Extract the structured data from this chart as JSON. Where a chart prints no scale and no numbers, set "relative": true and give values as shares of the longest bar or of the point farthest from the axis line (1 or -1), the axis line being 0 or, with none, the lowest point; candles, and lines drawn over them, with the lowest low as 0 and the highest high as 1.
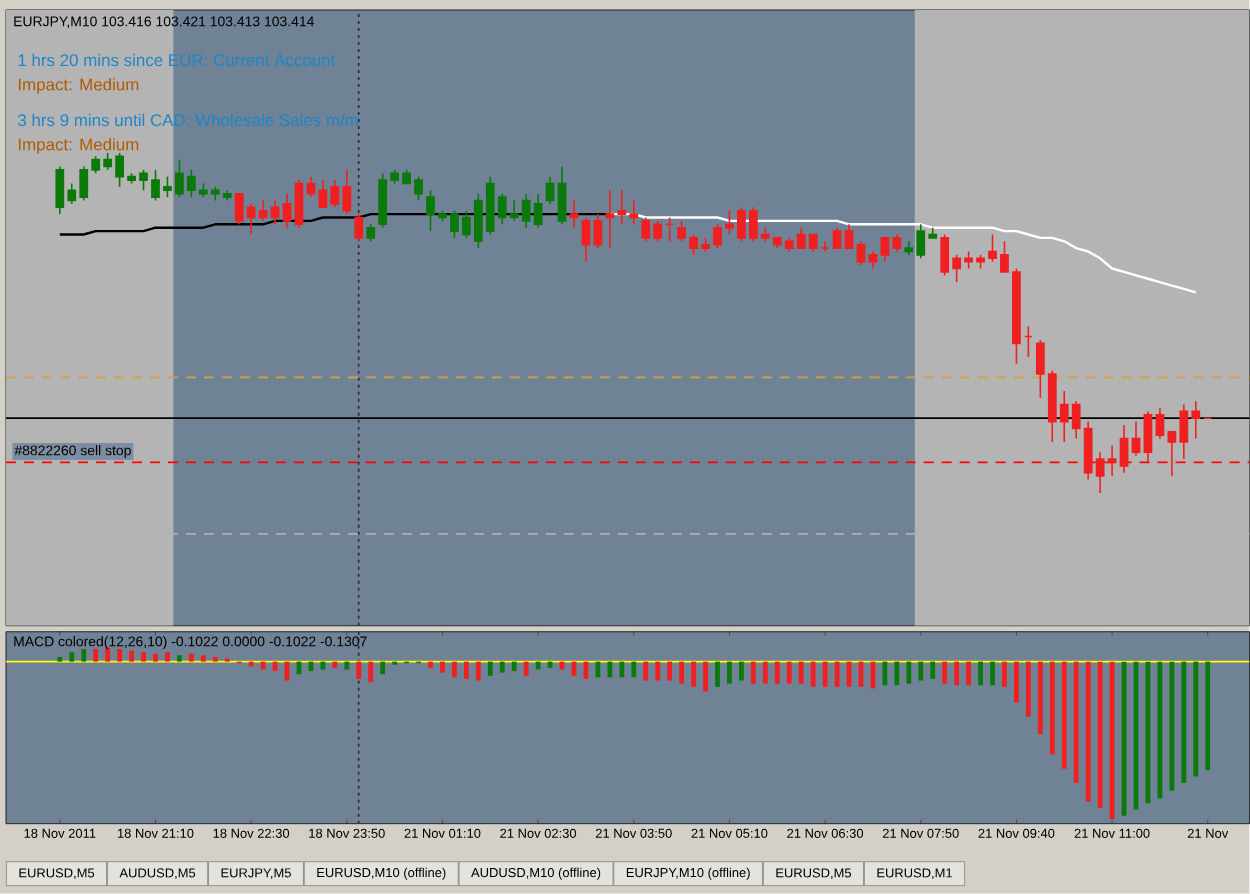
{
  "chart_data": [
    {
      "type": "candlestick",
      "title": "EURJPY,M10 103.416 103.421 103.413 103.414",
      "relative": true,
      "tick_labels": false,
      "ohlc": [
        [
          0.84,
          0.96,
          0.82,
          0.95
        ],
        [
          0.86,
          0.91,
          0.85,
          0.89
        ],
        [
          0.87,
          0.96,
          0.86,
          0.95
        ],
        [
          0.95,
          0.99,
          0.94,
          0.98
        ],
        [
          0.96,
          1.0,
          0.95,
          0.98
        ],
        [
          0.93,
          1.0,
          0.9,
          0.99
        ],
        [
          0.92,
          0.94,
          0.91,
          0.93
        ],
        [
          0.92,
          0.95,
          0.89,
          0.94
        ],
        [
          0.87,
          0.95,
          0.86,
          0.92
        ],
        [
          0.89,
          0.93,
          0.87,
          0.9
        ],
        [
          0.88,
          0.98,
          0.87,
          0.94
        ],
        [
          0.89,
          0.95,
          0.87,
          0.93
        ],
        [
          0.88,
          0.91,
          0.87,
          0.89
        ],
        [
          0.88,
          0.9,
          0.86,
          0.89
        ],
        [
          0.87,
          0.89,
          0.86,
          0.88
        ],
        [
          0.88,
          0.88,
          0.79,
          0.8
        ],
        [
          0.84,
          0.85,
          0.76,
          0.81
        ],
        [
          0.83,
          0.86,
          0.8,
          0.81
        ],
        [
          0.84,
          0.86,
          0.79,
          0.81
        ],
        [
          0.85,
          0.88,
          0.78,
          0.8
        ],
        [
          0.91,
          0.92,
          0.78,
          0.79
        ],
        [
          0.91,
          0.93,
          0.87,
          0.88
        ],
        [
          0.89,
          0.92,
          0.84,
          0.84
        ],
        [
          0.9,
          0.92,
          0.84,
          0.85
        ],
        [
          0.9,
          0.95,
          0.82,
          0.83
        ],
        [
          0.81,
          0.82,
          0.74,
          0.75
        ],
        [
          0.75,
          0.79,
          0.74,
          0.78
        ],
        [
          0.79,
          0.94,
          0.78,
          0.92
        ],
        [
          0.92,
          0.95,
          0.91,
          0.94
        ],
        [
          0.91,
          0.95,
          0.91,
          0.94
        ],
        [
          0.88,
          0.93,
          0.86,
          0.92
        ],
        [
          0.82,
          0.89,
          0.77,
          0.87
        ],
        [
          0.81,
          0.83,
          0.8,
          0.82
        ],
        [
          0.77,
          0.83,
          0.75,
          0.82
        ],
        [
          0.76,
          0.83,
          0.75,
          0.81
        ],
        [
          0.74,
          0.88,
          0.72,
          0.86
        ],
        [
          0.77,
          0.93,
          0.76,
          0.91
        ],
        [
          0.81,
          0.88,
          0.79,
          0.87
        ],
        [
          0.81,
          0.86,
          0.8,
          0.82
        ],
        [
          0.8,
          0.88,
          0.78,
          0.86
        ],
        [
          0.79,
          0.88,
          0.78,
          0.85
        ],
        [
          0.86,
          0.93,
          0.85,
          0.91
        ],
        [
          0.8,
          0.96,
          0.79,
          0.91
        ],
        [
          0.82,
          0.86,
          0.78,
          0.81
        ],
        [
          0.8,
          0.81,
          0.68,
          0.73
        ],
        [
          0.8,
          0.82,
          0.72,
          0.73
        ],
        [
          0.82,
          0.89,
          0.72,
          0.81
        ],
        [
          0.83,
          0.89,
          0.79,
          0.82
        ],
        [
          0.82,
          0.86,
          0.79,
          0.81
        ],
        [
          0.8,
          0.81,
          0.74,
          0.75
        ],
        [
          0.79,
          0.8,
          0.74,
          0.75
        ],
        [
          0.79,
          0.81,
          0.74,
          0.79
        ],
        [
          0.78,
          0.8,
          0.74,
          0.75
        ],
        [
          0.75,
          0.76,
          0.7,
          0.72
        ],
        [
          0.73,
          0.75,
          0.71,
          0.72
        ],
        [
          0.78,
          0.79,
          0.72,
          0.73
        ],
        [
          0.79,
          0.83,
          0.76,
          0.78
        ],
        [
          0.83,
          0.84,
          0.74,
          0.75
        ],
        [
          0.83,
          0.84,
          0.74,
          0.75
        ],
        [
          0.76,
          0.78,
          0.74,
          0.75
        ],
        [
          0.75,
          0.75,
          0.72,
          0.73
        ],
        [
          0.74,
          0.75,
          0.71,
          0.72
        ],
        [
          0.76,
          0.78,
          0.72,
          0.72
        ],
        [
          0.76,
          0.76,
          0.71,
          0.72
        ],
        [
          0.72,
          0.74,
          0.71,
          0.72
        ],
        [
          0.77,
          0.78,
          0.72,
          0.72
        ],
        [
          0.77,
          0.79,
          0.72,
          0.72
        ],
        [
          0.73,
          0.74,
          0.67,
          0.68
        ],
        [
          0.7,
          0.71,
          0.66,
          0.68
        ],
        [
          0.75,
          0.75,
          0.68,
          0.7
        ],
        [
          0.75,
          0.76,
          0.71,
          0.72
        ],
        [
          0.71,
          0.74,
          0.7,
          0.72
        ],
        [
          0.7,
          0.79,
          0.69,
          0.77
        ],
        [
          0.75,
          0.78,
          0.75,
          0.76
        ],
        [
          0.75,
          0.76,
          0.64,
          0.65
        ],
        [
          0.69,
          0.7,
          0.62,
          0.66
        ],
        [
          0.69,
          0.71,
          0.66,
          0.68
        ],
        [
          0.69,
          0.7,
          0.66,
          0.68
        ],
        [
          0.71,
          0.76,
          0.68,
          0.69
        ],
        [
          0.7,
          0.74,
          0.65,
          0.65
        ],
        [
          0.65,
          0.66,
          0.38,
          0.44
        ],
        [
          0.46,
          0.49,
          0.4,
          0.46
        ],
        [
          0.44,
          0.45,
          0.28,
          0.35
        ],
        [
          0.35,
          0.36,
          0.15,
          0.21
        ],
        [
          0.26,
          0.3,
          0.15,
          0.21
        ],
        [
          0.26,
          0.27,
          0.16,
          0.19
        ],
        [
          0.19,
          0.21,
          0.04,
          0.06
        ],
        [
          0.1,
          0.12,
          0.0,
          0.05
        ],
        [
          0.1,
          0.14,
          0.05,
          0.09
        ],
        [
          0.16,
          0.2,
          0.06,
          0.08
        ],
        [
          0.16,
          0.21,
          0.11,
          0.12
        ],
        [
          0.23,
          0.24,
          0.09,
          0.12
        ],
        [
          0.23,
          0.25,
          0.16,
          0.17
        ],
        [
          0.18,
          0.18,
          0.05,
          0.15
        ],
        [
          0.24,
          0.26,
          0.1,
          0.15
        ],
        [
          0.24,
          0.27,
          0.16,
          0.22
        ],
        [
          0.22,
          0.22,
          0.22,
          0.22
        ]
      ],
      "series": [
        {
          "type": "line",
          "color": "#000000",
          "values": [
            0.76,
            0.76,
            0.76,
            0.77,
            0.77,
            0.77,
            0.77,
            0.77,
            0.78,
            0.78,
            0.78,
            0.78,
            0.78,
            0.79,
            0.79,
            0.79,
            0.79,
            0.79,
            0.8,
            0.8,
            0.8,
            0.8,
            0.81,
            0.81,
            0.81,
            0.81,
            0.82,
            0.82,
            0.82,
            0.82,
            0.82,
            0.82,
            0.82,
            0.82,
            0.82,
            0.82,
            0.82,
            0.82,
            0.82,
            0.82,
            0.82,
            0.82,
            0.82,
            0.82,
            0.82,
            0.82,
            0.82,
            null,
            null,
            null,
            null,
            null,
            null,
            null,
            null,
            null,
            null,
            null,
            null,
            null,
            null,
            null,
            null,
            null,
            null,
            null,
            null,
            null,
            null,
            null,
            null,
            null,
            null,
            null,
            null,
            null,
            null,
            null,
            null,
            null,
            null,
            null,
            null,
            null,
            null,
            null,
            null,
            null,
            null,
            null,
            null,
            null,
            null,
            null,
            null,
            null,
            null
          ]
        },
        {
          "type": "line",
          "color": "#ffffff",
          "values": [
            null,
            null,
            null,
            null,
            null,
            null,
            null,
            null,
            null,
            null,
            null,
            null,
            null,
            null,
            null,
            null,
            null,
            null,
            null,
            null,
            null,
            null,
            null,
            null,
            null,
            null,
            null,
            null,
            null,
            null,
            null,
            null,
            null,
            null,
            null,
            null,
            null,
            null,
            null,
            null,
            null,
            null,
            null,
            null,
            null,
            null,
            0.82,
            0.82,
            0.82,
            0.81,
            0.81,
            0.81,
            0.81,
            0.81,
            0.81,
            0.81,
            0.8,
            0.8,
            0.8,
            0.8,
            0.8,
            0.8,
            0.8,
            0.8,
            0.8,
            0.8,
            0.79,
            0.79,
            0.79,
            0.79,
            0.79,
            0.79,
            0.79,
            0.78,
            0.78,
            0.78,
            0.78,
            0.78,
            0.78,
            0.77,
            0.77,
            0.76,
            0.75,
            0.75,
            0.74,
            0.72,
            0.71,
            0.69,
            0.66,
            0.65,
            0.64,
            0.63,
            0.62,
            0.61,
            0.6,
            0.59,
            null
          ]
        }
      ],
      "annotations": [
        "1 hrs 20 mins since EUR: Current Account",
        "Impact: Medium",
        "3 hrs 9 mins until CAD: Wholesale Sales m/m",
        "Impact: Medium"
      ],
      "ref_lines": [
        {
          "axis": "y",
          "value": 0.34,
          "color": "#d8a040",
          "line_style": "dashed"
        },
        {
          "axis": "y",
          "value": 0.22,
          "color": "#000000",
          "line_style": "solid"
        },
        {
          "axis": "y",
          "value": 0.09,
          "color": "#ff0000",
          "line_style": "dashed",
          "label": "#8822260 sell stop"
        },
        {
          "axis": "y",
          "value": -0.12,
          "color": "#b0b0b0",
          "line_style": "dashed"
        }
      ]
    },
    {
      "type": "bar",
      "title": "MACD colored(12,26,10) -0.1022 0.0000 -0.1022 -0.1307",
      "relative": true,
      "tick_labels": "x",
      "categories": [
        "18 Nov 2011",
        null,
        null,
        null,
        null,
        null,
        null,
        null,
        "18 Nov 21:10",
        null,
        null,
        null,
        null,
        null,
        null,
        null,
        "18 Nov 22:30",
        null,
        null,
        null,
        null,
        null,
        null,
        null,
        "18 Nov 23:50",
        null,
        null,
        null,
        null,
        null,
        null,
        null,
        "21 Nov 01:10",
        null,
        null,
        null,
        null,
        null,
        null,
        null,
        "21 Nov 02:30",
        null,
        null,
        null,
        null,
        null,
        null,
        null,
        "21 Nov 03:50",
        null,
        null,
        null,
        null,
        null,
        null,
        null,
        "21 Nov 05:10",
        null,
        null,
        null,
        null,
        null,
        null,
        null,
        "21 Nov 06:30",
        null,
        null,
        null,
        null,
        null,
        null,
        null,
        "21 Nov 07:50",
        null,
        null,
        null,
        null,
        null,
        null,
        null,
        "21 Nov 09:40",
        null,
        null,
        null,
        null,
        null,
        null,
        null,
        "21 Nov 11:00",
        null,
        null,
        null,
        null,
        null,
        null,
        null,
        "21 Nov"
      ],
      "values": [
        0.03,
        0.06,
        0.08,
        0.08,
        0.09,
        0.08,
        0.07,
        0.06,
        0.05,
        0.06,
        0.04,
        0.05,
        0.04,
        0.03,
        0.02,
        -0.01,
        -0.03,
        -0.05,
        -0.06,
        -0.12,
        -0.08,
        -0.06,
        -0.05,
        -0.04,
        -0.05,
        -0.11,
        -0.13,
        -0.08,
        -0.02,
        -0.01,
        -0.01,
        -0.04,
        -0.07,
        -0.1,
        -0.11,
        -0.12,
        -0.09,
        -0.07,
        -0.06,
        -0.09,
        -0.05,
        -0.04,
        -0.05,
        -0.09,
        -0.11,
        -0.1,
        -0.1,
        -0.1,
        -0.1,
        -0.12,
        -0.12,
        -0.12,
        -0.14,
        -0.16,
        -0.19,
        -0.16,
        -0.14,
        -0.12,
        -0.14,
        -0.14,
        -0.14,
        -0.14,
        -0.14,
        -0.16,
        -0.16,
        -0.16,
        -0.16,
        -0.16,
        -0.17,
        -0.15,
        -0.15,
        -0.14,
        -0.12,
        -0.11,
        -0.14,
        -0.15,
        -0.15,
        -0.15,
        -0.15,
        -0.16,
        -0.26,
        -0.35,
        -0.46,
        -0.59,
        -0.68,
        -0.77,
        -0.89,
        -0.93,
        -1,
        -0.98,
        -0.94,
        -0.9,
        -0.87,
        -0.82,
        -0.77,
        -0.73,
        -0.69
      ],
      "colors": [
        "#0b7a0b",
        "#0b7a0b",
        "#0b7a0b",
        "#f02020",
        "#f02020",
        "#f02020",
        "#f02020",
        "#f02020",
        "#f02020",
        "#f02020",
        "#0b7a0b",
        "#f02020",
        "#f02020",
        "#f02020",
        "#f02020",
        "#f02020",
        "#f02020",
        "#f02020",
        "#f02020",
        "#f02020",
        "#0b7a0b",
        "#0b7a0b",
        "#0b7a0b",
        "#f02020",
        "#0b7a0b",
        "#f02020",
        "#f02020",
        "#0b7a0b",
        "#0b7a0b",
        "#0b7a0b",
        "#0b7a0b",
        "#f02020",
        "#f02020",
        "#f02020",
        "#f02020",
        "#f02020",
        "#0b7a0b",
        "#0b7a0b",
        "#0b7a0b",
        "#f02020",
        "#0b7a0b",
        "#0b7a0b",
        "#f02020",
        "#f02020",
        "#f02020",
        "#0b7a0b",
        "#0b7a0b",
        "#0b7a0b",
        "#0b7a0b",
        "#f02020",
        "#f02020",
        "#f02020",
        "#f02020",
        "#f02020",
        "#f02020",
        "#0b7a0b",
        "#0b7a0b",
        "#0b7a0b",
        "#f02020",
        "#f02020",
        "#f02020",
        "#f02020",
        "#f02020",
        "#f02020",
        "#f02020",
        "#f02020",
        "#f02020",
        "#f02020",
        "#f02020",
        "#0b7a0b",
        "#0b7a0b",
        "#0b7a0b",
        "#0b7a0b",
        "#0b7a0b",
        "#f02020",
        "#f02020",
        "#f02020",
        "#0b7a0b",
        "#0b7a0b",
        "#f02020",
        "#f02020",
        "#f02020",
        "#f02020",
        "#f02020",
        "#f02020",
        "#f02020",
        "#f02020",
        "#f02020",
        "#f02020",
        "#0b7a0b",
        "#0b7a0b",
        "#0b7a0b",
        "#0b7a0b",
        "#0b7a0b",
        "#0b7a0b",
        "#0b7a0b",
        "#0b7a0b"
      ],
      "ref_lines": [
        {
          "axis": "y",
          "value": 0,
          "color": "#ffff00",
          "line_style": "solid"
        }
      ],
      "annotations": [
        "EURUSD,M5",
        "AUDUSD,M5",
        "EURJPY,M5",
        "EURUSD,M10 (offline)",
        "AUDUSD,M10 (offline)",
        "EURJPY,M10 (offline)",
        "EURUSD,M5",
        "EURUSD,M1"
      ]
    }
  ]
}
